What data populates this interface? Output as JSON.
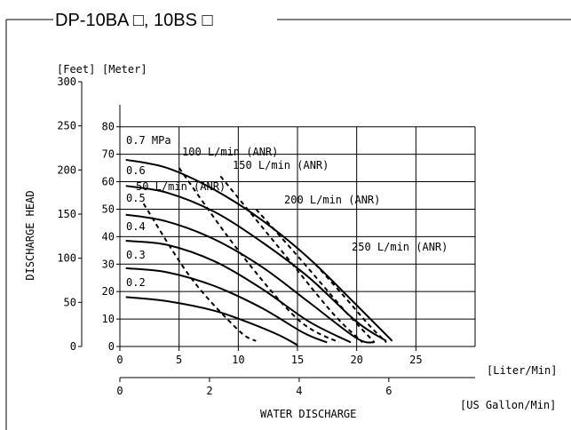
{
  "title": "DP-10BA □, 10BS □",
  "chart_data": {
    "type": "line",
    "title": "DP-10BA □, 10BS □",
    "unit_feet": "[Feet]",
    "unit_meter": "[Meter]",
    "ylabel": "DISCHARGE  HEAD",
    "xlabel": "WATER  DISCHARGE",
    "x_unit_liter": "[Liter/Min]",
    "x_unit_gallon": "[US Gallon/Min]",
    "xlim": [
      0,
      30
    ],
    "ylim_meter": [
      0,
      88
    ],
    "x_ticks_liter": [
      "0",
      "5",
      "10",
      "15",
      "20",
      "25"
    ],
    "x_tick_values_liter": [
      0,
      5,
      10,
      15,
      20,
      25
    ],
    "x_ticks_gallon": [
      "0",
      "2",
      "4",
      "6"
    ],
    "x_tick_values_gallon": [
      0,
      2,
      4,
      6
    ],
    "y_ticks_meter": [
      "0",
      "10",
      "20",
      "30",
      "40",
      "50",
      "60",
      "70",
      "80"
    ],
    "y_tick_values_meter": [
      0,
      10,
      20,
      30,
      40,
      50,
      60,
      70,
      80
    ],
    "y_ticks_feet": [
      "0",
      "50",
      "100",
      "150",
      "200",
      "250",
      "300"
    ],
    "y_tick_values_feet": [
      0,
      50,
      100,
      150,
      200,
      250,
      300
    ],
    "grid": true,
    "series": [
      {
        "name": "0.7 MPa",
        "x": [
          0.5,
          4,
          8,
          12,
          16,
          20,
          23
        ],
        "y": [
          68,
          65,
          57,
          46,
          32,
          15,
          2
        ]
      },
      {
        "name": "0.6",
        "x": [
          0.5,
          4,
          8,
          12,
          16,
          20,
          22.5
        ],
        "y": [
          58.5,
          56,
          49,
          38,
          25,
          9,
          2
        ]
      },
      {
        "name": "0.5",
        "x": [
          0.5,
          4,
          8,
          12,
          16,
          20,
          21.5
        ],
        "y": [
          48,
          45.5,
          39,
          29,
          16,
          3,
          1.5
        ]
      },
      {
        "name": "0.4",
        "x": [
          0.5,
          4,
          8,
          12,
          16,
          19.5
        ],
        "y": [
          38.5,
          37,
          31,
          21,
          9,
          1.5
        ]
      },
      {
        "name": "0.3",
        "x": [
          0.5,
          4,
          8,
          12,
          15.5,
          17.5
        ],
        "y": [
          28.5,
          27,
          22,
          14,
          5,
          1.5
        ]
      },
      {
        "name": "0.2",
        "x": [
          0.5,
          4,
          8,
          11,
          13.5,
          15
        ],
        "y": [
          18,
          16.5,
          13,
          8.5,
          4,
          0.5
        ]
      }
    ],
    "air_lines": [
      {
        "name": "50 L/min (ANR)",
        "x": [
          2,
          6,
          10,
          11.5
        ],
        "y": [
          52,
          25,
          6,
          2
        ]
      },
      {
        "name": "100 L/min (ANR)",
        "x": [
          5,
          10,
          15,
          18.5
        ],
        "y": [
          65,
          35,
          10,
          1.5
        ]
      },
      {
        "name": "150 L/min (ANR)",
        "x": [
          8.5,
          14,
          18,
          20.5
        ],
        "y": [
          62,
          33,
          12,
          1.5
        ]
      },
      {
        "name": "200 L/min (ANR)",
        "x": [
          11.5,
          15,
          19,
          21.5
        ],
        "y": [
          50,
          33,
          13,
          1.5
        ]
      },
      {
        "name": "250 L/min (ANR)",
        "x": [
          16.5,
          19,
          21,
          22.5
        ],
        "y": [
          30,
          18,
          8,
          1.5
        ]
      }
    ]
  }
}
